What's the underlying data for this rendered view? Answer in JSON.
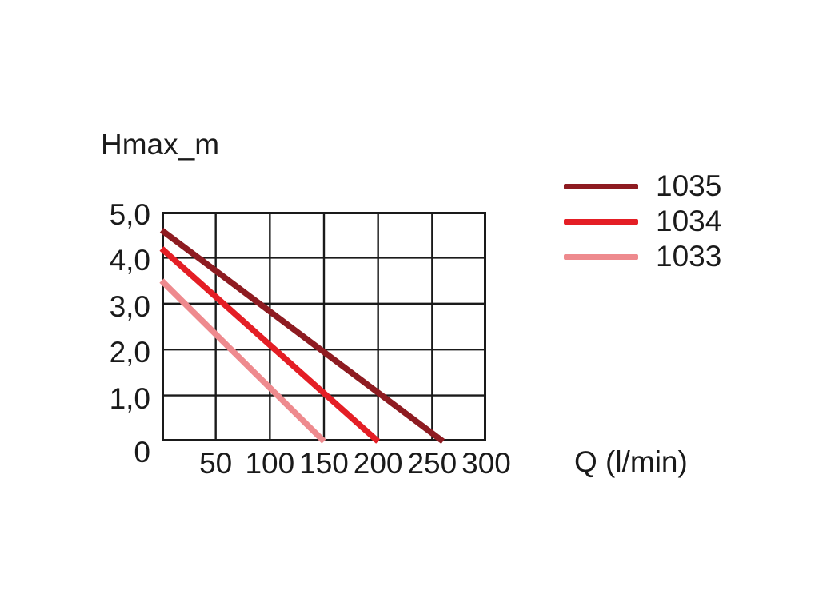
{
  "chart_data": {
    "type": "line",
    "title": "Hmax_m",
    "xlabel": "Q (l/min)",
    "ylabel": "Hmax_m",
    "xlim": [
      0,
      300
    ],
    "ylim": [
      0,
      5
    ],
    "grid": true,
    "axis_color": "#1a1a1a",
    "text_color": "#1a1a1a",
    "legend_position": "top-right-outside",
    "x_ticks": [
      {
        "value": 50,
        "label": "50"
      },
      {
        "value": 100,
        "label": "100"
      },
      {
        "value": 150,
        "label": "150"
      },
      {
        "value": 200,
        "label": "200"
      },
      {
        "value": 250,
        "label": "250"
      },
      {
        "value": 300,
        "label": "300"
      }
    ],
    "y_ticks": [
      {
        "value": 5,
        "label": "5,0"
      },
      {
        "value": 4,
        "label": "4,0"
      },
      {
        "value": 3,
        "label": "3,0"
      },
      {
        "value": 2,
        "label": "2,0"
      },
      {
        "value": 1,
        "label": "1,0"
      },
      {
        "value": 0,
        "label": "0"
      }
    ],
    "series": [
      {
        "name": "1035",
        "color": "#8E1B21",
        "points": [
          [
            0,
            4.6
          ],
          [
            260,
            0
          ]
        ]
      },
      {
        "name": "1034",
        "color": "#E41E25",
        "points": [
          [
            0,
            4.2
          ],
          [
            200,
            0
          ]
        ]
      },
      {
        "name": "1033",
        "color": "#EE8A8E",
        "points": [
          [
            0,
            3.5
          ],
          [
            150,
            0
          ]
        ]
      }
    ]
  }
}
